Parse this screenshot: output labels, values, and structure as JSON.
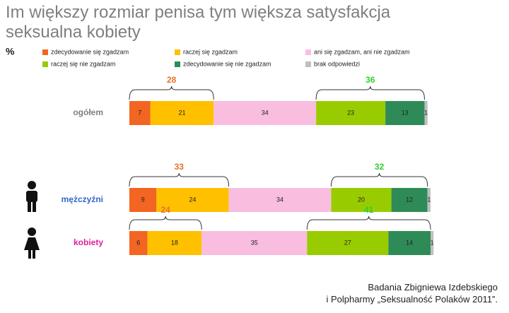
{
  "chart_data": {
    "type": "stacked-bar-horizontal",
    "title": "Im większy rozmiar penisa tym większa satysfakcja seksualna kobiety",
    "unit_label": "%",
    "categories": [
      "ogółem",
      "mężczyźni",
      "kobiety"
    ],
    "category_colors": [
      "#7f7f7f",
      "#3366cc",
      "#e0209a"
    ],
    "series": [
      {
        "name": "zdecydowanie się zgadzam",
        "color": "#f26522",
        "values": [
          7,
          9,
          6
        ]
      },
      {
        "name": "raczej się zgadzam",
        "color": "#ffc000",
        "values": [
          21,
          24,
          18
        ]
      },
      {
        "name": "ani się zgadzam, ani nie zgadzam",
        "color": "#f9bde0",
        "values": [
          34,
          34,
          35
        ]
      },
      {
        "name": "raczej się nie zgadzam",
        "color": "#99cc00",
        "values": [
          23,
          20,
          27
        ]
      },
      {
        "name": "zdecydowanie się nie zgadzam",
        "color": "#2e8b57",
        "values": [
          13,
          12,
          14
        ]
      },
      {
        "name": "brak odpowiedzi",
        "color": "#bfbfbf",
        "values": [
          1,
          1,
          1
        ]
      }
    ],
    "agree_totals": {
      "color": "#e8702a",
      "values": [
        28,
        33,
        24
      ]
    },
    "disagree_totals": {
      "color": "#33cc33",
      "values": [
        36,
        32,
        41
      ]
    },
    "xlim": [
      0,
      100
    ],
    "source": [
      "Badania Zbigniewa Izdebskiego",
      "i Polpharmy „Seksualność Polaków 2011”."
    ]
  }
}
